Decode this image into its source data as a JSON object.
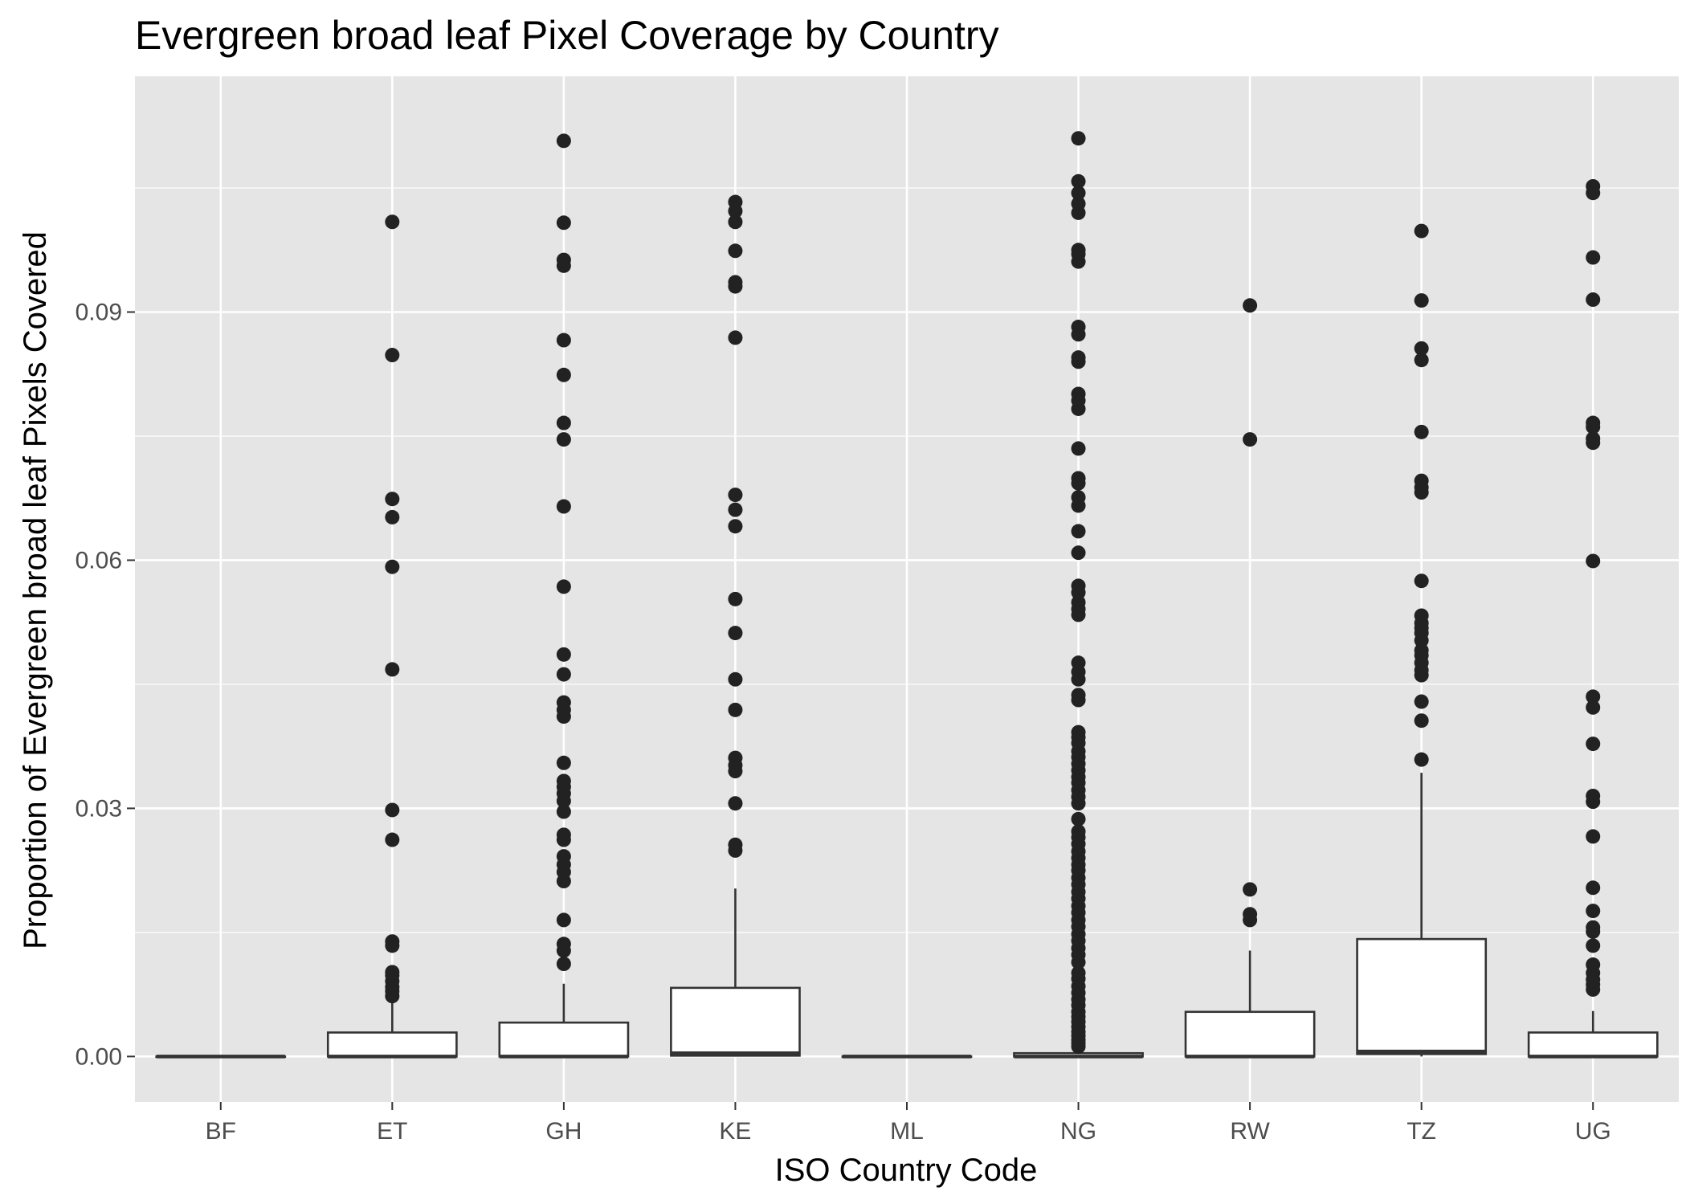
{
  "chart_data": {
    "type": "boxplot",
    "title": "Evergreen broad leaf Pixel Coverage by Country",
    "xlabel": "ISO Country Code",
    "ylabel": "Proportion of Evergreen broad leaf Pixels Covered",
    "ylim": [
      -0.0055,
      0.1185
    ],
    "yticks": [
      0.0,
      0.03,
      0.06,
      0.09
    ],
    "ytick_labels": [
      "0.00",
      "0.03",
      "0.06",
      "0.09"
    ],
    "grid": true,
    "legend": "none",
    "colors": {
      "panel": "#E5E5E5",
      "grid": "#FFFFFF",
      "box_fill": "#FFFFFF",
      "box_line": "#333333",
      "point": "#222222"
    },
    "categories": [
      "BF",
      "ET",
      "GH",
      "KE",
      "ML",
      "NG",
      "RW",
      "TZ",
      "UG"
    ],
    "boxes": [
      {
        "category": "BF",
        "min": 0,
        "q1": 0,
        "median": 0,
        "q3": 0,
        "max": 0,
        "outliers": []
      },
      {
        "category": "ET",
        "min": 0,
        "q1": 0,
        "median": 0,
        "q3": 0.0029,
        "max": 0.0072,
        "outliers": [
          0.1009,
          0.0848,
          0.0674,
          0.0652,
          0.0592,
          0.0468,
          0.0298,
          0.0262,
          0.0139,
          0.0134,
          0.0102,
          0.0098,
          0.0091,
          0.0084,
          0.0079,
          0.0073
        ]
      },
      {
        "category": "GH",
        "min": 0,
        "q1": 0,
        "median": 0,
        "q3": 0.0041,
        "max": 0.0088,
        "outliers": [
          0.1107,
          0.1008,
          0.0963,
          0.0956,
          0.0866,
          0.0824,
          0.0766,
          0.0746,
          0.0665,
          0.0568,
          0.0486,
          0.0462,
          0.0428,
          0.0419,
          0.0411,
          0.0355,
          0.0333,
          0.0326,
          0.0318,
          0.0309,
          0.0296,
          0.0268,
          0.0262,
          0.0242,
          0.0232,
          0.0223,
          0.0212,
          0.0165,
          0.0136,
          0.0128,
          0.0112
        ]
      },
      {
        "category": "KE",
        "min": 0,
        "q1": 0.0001,
        "median": 0.0004,
        "q3": 0.0083,
        "max": 0.0203,
        "outliers": [
          0.1033,
          0.1022,
          0.1009,
          0.0974,
          0.0936,
          0.0931,
          0.0869,
          0.0679,
          0.0661,
          0.0641,
          0.0553,
          0.0512,
          0.0456,
          0.0419,
          0.0361,
          0.0352,
          0.0345,
          0.0306,
          0.0256,
          0.0249
        ]
      },
      {
        "category": "ML",
        "min": 0,
        "q1": 0,
        "median": 0,
        "q3": 0,
        "max": 0,
        "outliers": []
      },
      {
        "category": "NG",
        "min": 0,
        "q1": 0,
        "median": 0,
        "q3": 0.0004,
        "max": 0.0009,
        "outliers": [
          0.111,
          0.1058,
          0.1044,
          0.1031,
          0.102,
          0.0975,
          0.097,
          0.0961,
          0.0882,
          0.0873,
          0.0845,
          0.084,
          0.0801,
          0.0793,
          0.0783,
          0.0735,
          0.0699,
          0.0693,
          0.0676,
          0.0666,
          0.0635,
          0.0609,
          0.0569,
          0.0561,
          0.0549,
          0.0541,
          0.0534,
          0.0476,
          0.0465,
          0.0456,
          0.0437,
          0.0431,
          0.0392,
          0.0386,
          0.0379,
          0.0369,
          0.0362,
          0.0354,
          0.0346,
          0.0338,
          0.0331,
          0.0322,
          0.0314,
          0.0306,
          0.0287,
          0.0272,
          0.0265,
          0.0257,
          0.0248,
          0.024,
          0.0232,
          0.0225,
          0.0216,
          0.0208,
          0.0199,
          0.0191,
          0.0182,
          0.0174,
          0.0165,
          0.0157,
          0.0148,
          0.014,
          0.0131,
          0.0123,
          0.0114,
          0.0101,
          0.0094,
          0.0085,
          0.0077,
          0.0069,
          0.0062,
          0.0054,
          0.0048,
          0.0042,
          0.0036,
          0.003,
          0.0025,
          0.002,
          0.0016,
          0.0012
        ]
      },
      {
        "category": "RW",
        "min": 0,
        "q1": 0,
        "median": 0,
        "q3": 0.0054,
        "max": 0.0128,
        "outliers": [
          0.0908,
          0.0746,
          0.0202,
          0.0172,
          0.0165
        ]
      },
      {
        "category": "TZ",
        "min": 0,
        "q1": 0.0003,
        "median": 0.0006,
        "q3": 0.0142,
        "max": 0.0343,
        "outliers": [
          0.0998,
          0.0914,
          0.0856,
          0.0842,
          0.0755,
          0.0696,
          0.0688,
          0.0682,
          0.0575,
          0.0533,
          0.0524,
          0.0518,
          0.0512,
          0.0503,
          0.0491,
          0.0485,
          0.0476,
          0.0467,
          0.0461,
          0.0429,
          0.0406,
          0.0359
        ]
      },
      {
        "category": "UG",
        "min": 0,
        "q1": 0,
        "median": 0,
        "q3": 0.0029,
        "max": 0.0055,
        "outliers": [
          0.1052,
          0.1044,
          0.0966,
          0.0915,
          0.0766,
          0.0761,
          0.0747,
          0.0742,
          0.0599,
          0.0435,
          0.0422,
          0.0378,
          0.0315,
          0.0308,
          0.0266,
          0.0204,
          0.0176,
          0.0156,
          0.0151,
          0.0134,
          0.0111,
          0.0101,
          0.0093,
          0.0087,
          0.0081
        ]
      }
    ]
  }
}
